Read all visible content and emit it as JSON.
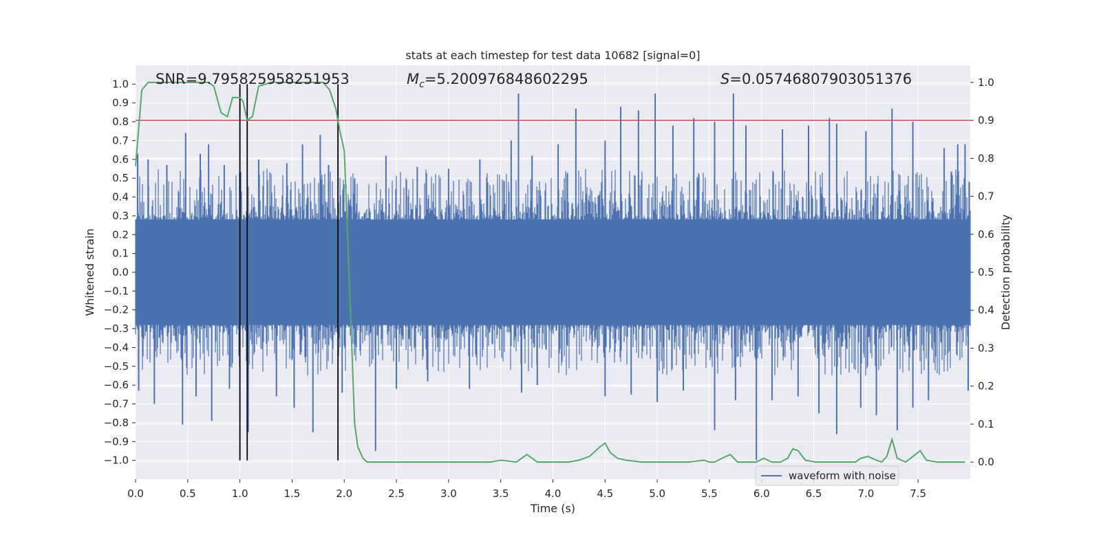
{
  "chart_data": {
    "type": "line",
    "title": "stats at each timestep for test data 10682 [signal=0]",
    "xlabel": "Time (s)",
    "ylabel": "Whitened strain",
    "y2label": "Detection probability",
    "xlim": [
      0.0,
      8.0
    ],
    "ylim": [
      -1.1,
      1.1
    ],
    "y2lim": [
      -0.045,
      1.045
    ],
    "x_ticks": [
      0.0,
      0.5,
      1.0,
      1.5,
      2.0,
      2.5,
      3.0,
      3.5,
      4.0,
      4.5,
      5.0,
      5.5,
      6.0,
      6.5,
      7.0,
      7.5
    ],
    "x_tick_labels": [
      "0.0",
      "0.5",
      "1.0",
      "1.5",
      "2.0",
      "2.5",
      "3.0",
      "3.5",
      "4.0",
      "4.5",
      "5.0",
      "5.5",
      "6.0",
      "6.5",
      "7.0",
      "7.5"
    ],
    "y_ticks": [
      1.0,
      0.9,
      0.8,
      0.7,
      0.6,
      0.5,
      0.4,
      0.3,
      0.2,
      0.1,
      0.0,
      -0.1,
      -0.2,
      -0.3,
      -0.4,
      -0.5,
      -0.6,
      -0.7,
      -0.8,
      -0.9,
      -1.0
    ],
    "y_tick_labels": [
      "1.0",
      "0.9",
      "0.8",
      "0.7",
      "0.6",
      "0.5",
      "0.4",
      "0.3",
      "0.2",
      "0.1",
      "0.0",
      "−0.1",
      "−0.2",
      "−0.3",
      "−0.4",
      "−0.5",
      "−0.6",
      "−0.7",
      "−0.8",
      "−0.9",
      "−1.0"
    ],
    "y2_ticks": [
      1.0,
      0.9,
      0.8,
      0.7,
      0.6,
      0.5,
      0.4,
      0.3,
      0.2,
      0.1,
      0.0
    ],
    "y2_tick_labels": [
      "1.0",
      "0.9",
      "0.8",
      "0.7",
      "0.6",
      "0.5",
      "0.4",
      "0.3",
      "0.2",
      "0.1",
      "0.0"
    ],
    "annotations": {
      "snr": "SNR=9.795825958251953",
      "mc_symbol": "M",
      "mc_subscript": "c",
      "mc_value": "=5.200976848602295",
      "s_symbol": "S",
      "s_value": "=0.05746807903051376"
    },
    "legend": {
      "label": "waveform with noise",
      "placement": "bottom-right"
    },
    "threshold": {
      "value": 0.9,
      "color": "#c44e52"
    },
    "vertical_lines": [
      1.0,
      1.07,
      1.94
    ],
    "vertical_lines_range": [
      -1.0,
      1.0
    ],
    "waveform": {
      "name": "waveform with noise",
      "color": "#4c72b0",
      "core_amplitude": 0.28,
      "spikes_pos": [
        [
          0.02,
          0.63
        ],
        [
          0.12,
          0.6
        ],
        [
          0.3,
          0.57
        ],
        [
          0.48,
          0.74
        ],
        [
          0.62,
          0.63
        ],
        [
          0.7,
          0.68
        ],
        [
          0.85,
          0.57
        ],
        [
          1.18,
          0.6
        ],
        [
          1.45,
          0.58
        ],
        [
          1.6,
          0.68
        ],
        [
          1.77,
          0.73
        ],
        [
          1.85,
          0.57
        ],
        [
          2.1,
          0.5
        ],
        [
          2.4,
          0.62
        ],
        [
          2.7,
          0.56
        ],
        [
          3.0,
          0.55
        ],
        [
          3.3,
          0.6
        ],
        [
          3.6,
          0.7
        ],
        [
          3.67,
          0.95
        ],
        [
          3.8,
          0.62
        ],
        [
          4.05,
          0.68
        ],
        [
          4.22,
          0.87
        ],
        [
          4.5,
          0.7
        ],
        [
          4.65,
          0.88
        ],
        [
          4.82,
          0.86
        ],
        [
          4.98,
          0.95
        ],
        [
          5.15,
          0.78
        ],
        [
          5.35,
          0.82
        ],
        [
          5.55,
          0.8
        ],
        [
          5.73,
          0.95
        ],
        [
          5.85,
          0.78
        ],
        [
          6.2,
          0.76
        ],
        [
          6.45,
          0.78
        ],
        [
          6.65,
          0.82
        ],
        [
          6.72,
          0.79
        ],
        [
          7.0,
          0.75
        ],
        [
          7.25,
          0.87
        ],
        [
          7.45,
          0.8
        ],
        [
          7.75,
          0.66
        ],
        [
          7.88,
          0.68
        ],
        [
          7.95,
          0.68
        ]
      ],
      "spikes_neg": [
        [
          0.03,
          -0.63
        ],
        [
          0.18,
          -0.7
        ],
        [
          0.45,
          -0.81
        ],
        [
          0.58,
          -0.66
        ],
        [
          0.73,
          -0.79
        ],
        [
          0.9,
          -0.62
        ],
        [
          1.08,
          -0.85
        ],
        [
          1.35,
          -0.66
        ],
        [
          1.52,
          -0.72
        ],
        [
          1.7,
          -0.85
        ],
        [
          1.98,
          -0.64
        ],
        [
          2.3,
          -0.95
        ],
        [
          2.5,
          -0.62
        ],
        [
          2.8,
          -0.58
        ],
        [
          3.2,
          -0.62
        ],
        [
          3.7,
          -0.64
        ],
        [
          3.85,
          -0.6
        ],
        [
          4.5,
          -0.66
        ],
        [
          4.75,
          -0.65
        ],
        [
          5.0,
          -0.69
        ],
        [
          5.25,
          -0.63
        ],
        [
          5.55,
          -0.84
        ],
        [
          5.75,
          -0.68
        ],
        [
          5.95,
          -1.0
        ],
        [
          6.1,
          -0.68
        ],
        [
          6.35,
          -0.66
        ],
        [
          6.55,
          -0.75
        ],
        [
          6.72,
          -0.86
        ],
        [
          6.95,
          -0.72
        ],
        [
          7.1,
          -0.76
        ],
        [
          7.3,
          -0.84
        ],
        [
          7.45,
          -0.72
        ],
        [
          7.6,
          -0.68
        ],
        [
          7.98,
          -0.63
        ]
      ]
    },
    "detection_probability": {
      "name": "Detection probability",
      "color": "#55a868",
      "x": [
        0.0,
        0.06,
        0.12,
        0.2,
        0.3,
        0.45,
        0.6,
        0.7,
        0.75,
        0.82,
        0.88,
        0.93,
        1.0,
        1.03,
        1.07,
        1.12,
        1.18,
        1.3,
        1.45,
        1.6,
        1.75,
        1.8,
        1.86,
        1.92,
        1.96,
        2.0,
        2.06,
        2.1,
        2.13,
        2.18,
        2.22,
        2.3,
        2.5,
        2.8,
        3.0,
        3.2,
        3.4,
        3.5,
        3.65,
        3.75,
        3.85,
        3.95,
        4.05,
        4.15,
        4.25,
        4.35,
        4.45,
        4.5,
        4.55,
        4.62,
        4.7,
        4.85,
        5.0,
        5.15,
        5.3,
        5.45,
        5.5,
        5.55,
        5.62,
        5.7,
        5.77,
        5.85,
        5.95,
        6.02,
        6.1,
        6.18,
        6.25,
        6.3,
        6.35,
        6.42,
        6.52,
        6.62,
        6.75,
        6.9,
        6.95,
        7.02,
        7.1,
        7.15,
        7.2,
        7.25,
        7.3,
        7.38,
        7.45,
        7.52,
        7.58,
        7.68,
        7.8,
        7.95
      ],
      "y": [
        0.78,
        0.98,
        1.0,
        1.0,
        1.0,
        1.0,
        1.0,
        1.0,
        0.99,
        0.92,
        0.91,
        0.96,
        0.96,
        0.95,
        0.9,
        0.91,
        0.99,
        1.0,
        1.0,
        1.0,
        1.0,
        1.0,
        0.98,
        0.93,
        0.87,
        0.82,
        0.4,
        0.1,
        0.04,
        0.01,
        0.0,
        0.0,
        0.0,
        0.0,
        0.0,
        0.0,
        0.0,
        0.005,
        0.0,
        0.02,
        0.0,
        0.0,
        0.0,
        0.0,
        0.005,
        0.015,
        0.04,
        0.05,
        0.025,
        0.01,
        0.005,
        0.0,
        0.0,
        0.0,
        0.0,
        0.005,
        0.0,
        0.0,
        0.01,
        0.02,
        0.0,
        0.0,
        0.0,
        0.01,
        0.0,
        0.0,
        0.01,
        0.035,
        0.03,
        0.005,
        0.0,
        0.0,
        0.0,
        0.0,
        0.01,
        0.015,
        0.005,
        0.0,
        0.015,
        0.06,
        0.01,
        0.0,
        0.015,
        0.03,
        0.005,
        0.0,
        0.0,
        0.0
      ]
    }
  }
}
